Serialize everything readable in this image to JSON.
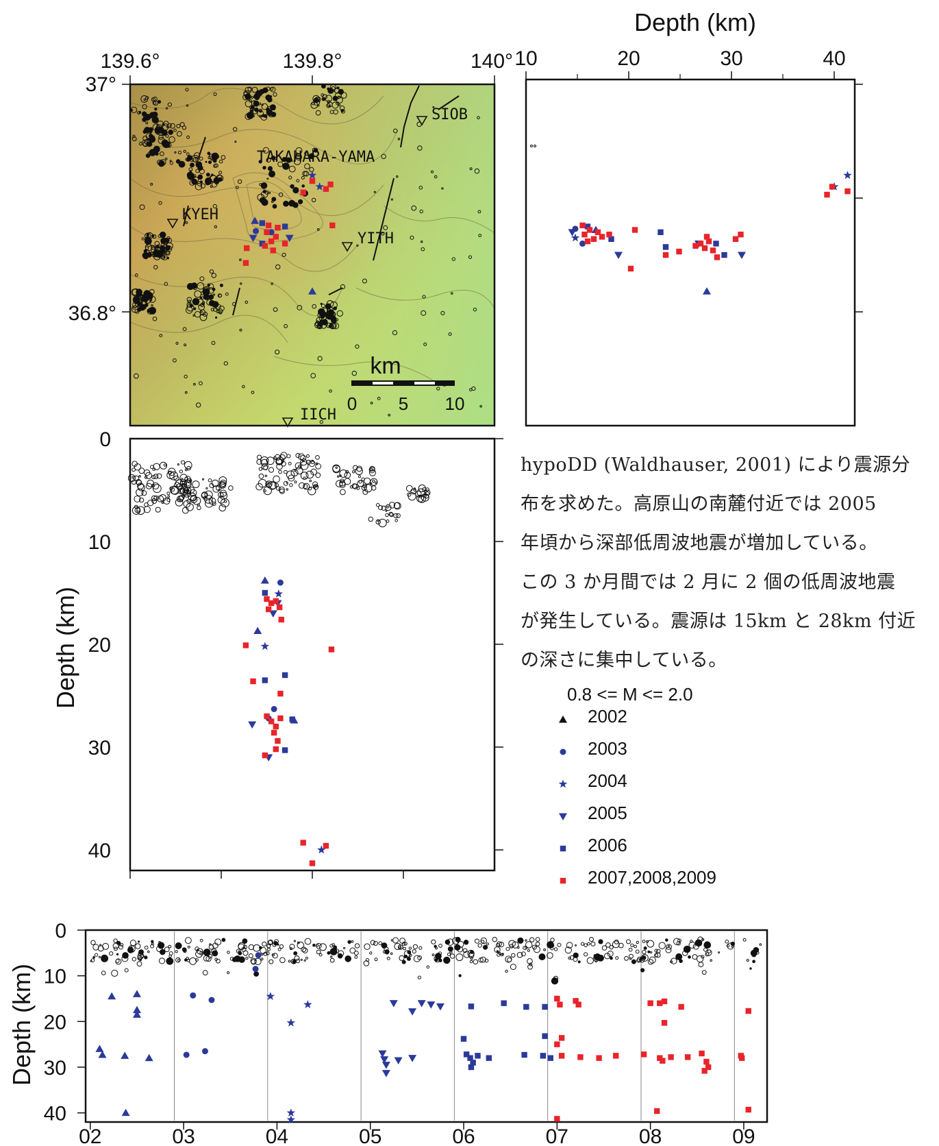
{
  "description_lines": [
    "hypoDD (Waldhauser, 2001) により震源分",
    "布を求めた。高原山の南麓付近では 2005",
    "年頃から深部低周波地震が増加している。",
    "この 3 か月間では 2 月に 2 個の低周波地震",
    "が発生している。震源は 15km と 28km 付近",
    "の深さに集中している。"
  ],
  "legend": {
    "title": "0.8 <= M <= 2.0",
    "entries": [
      {
        "label": "2002",
        "symbol": "triangle",
        "color": "#111111"
      },
      {
        "label": "2003",
        "symbol": "circle",
        "color": "#2b3a9a"
      },
      {
        "label": "2004",
        "symbol": "star",
        "color": "#2b3a9a"
      },
      {
        "label": "2005",
        "symbol": "inverted-triangle",
        "color": "#2b3a9a"
      },
      {
        "label": "2006",
        "symbol": "square",
        "color": "#2b3a9a"
      },
      {
        "label": "2007,2008,2009",
        "symbol": "square",
        "color": "#e8242b"
      }
    ]
  },
  "map": {
    "lon_ticks": [
      "139.6°",
      "139.8°",
      "140°"
    ],
    "lat_ticks": [
      "37°",
      "36.8°"
    ],
    "stations": [
      "SIOB",
      "KYEH",
      "YITH",
      "IICH"
    ],
    "place_label": "TAKAHARA-YAMA",
    "scale_bar": {
      "unit": "km",
      "ticks": [
        "0",
        "5",
        "10"
      ]
    }
  },
  "colors": {
    "blue": "#2b3a9a",
    "red": "#e8242b",
    "black": "#111111"
  },
  "chart_data": [
    {
      "type": "scatter",
      "name": "map",
      "xlim": [
        139.6,
        140.0
      ],
      "ylim": [
        36.7,
        37.0
      ],
      "xticks": [
        139.6,
        139.8,
        140.0
      ],
      "yticks": [
        37.0,
        36.8
      ],
      "points": [
        {
          "g": "2002",
          "x": 139.737,
          "y": 36.88
        },
        {
          "g": "2002",
          "x": 139.8,
          "y": 36.818
        },
        {
          "g": "2003",
          "x": 139.738,
          "y": 36.871
        },
        {
          "g": "2003",
          "x": 139.755,
          "y": 36.87
        },
        {
          "g": "2004",
          "x": 139.8,
          "y": 36.92
        },
        {
          "g": "2004",
          "x": 139.808,
          "y": 36.91
        },
        {
          "g": "2005",
          "x": 139.735,
          "y": 36.865
        },
        {
          "g": "2005",
          "x": 139.775,
          "y": 36.865
        },
        {
          "g": "2006",
          "x": 139.745,
          "y": 36.878
        },
        {
          "g": "2006",
          "x": 139.77,
          "y": 36.875
        },
        {
          "g": "2006",
          "x": 139.745,
          "y": 36.86
        },
        {
          "g": "2007",
          "x": 139.75,
          "y": 36.87
        },
        {
          "g": "2007",
          "x": 139.755,
          "y": 36.862
        },
        {
          "g": "2007",
          "x": 139.76,
          "y": 36.866
        },
        {
          "g": "2007",
          "x": 139.748,
          "y": 36.858
        },
        {
          "g": "2007",
          "x": 139.762,
          "y": 36.874
        },
        {
          "g": "2007",
          "x": 139.752,
          "y": 36.876
        },
        {
          "g": "2007",
          "x": 139.757,
          "y": 36.854
        },
        {
          "g": "2007",
          "x": 139.77,
          "y": 36.86
        },
        {
          "g": "2007",
          "x": 139.79,
          "y": 36.905
        },
        {
          "g": "2007",
          "x": 139.8,
          "y": 36.915
        },
        {
          "g": "2007",
          "x": 139.815,
          "y": 36.908
        },
        {
          "g": "2007",
          "x": 139.82,
          "y": 36.912
        },
        {
          "g": "2007",
          "x": 139.822,
          "y": 36.876
        },
        {
          "g": "2007",
          "x": 139.728,
          "y": 36.856
        },
        {
          "g": "2007",
          "x": 139.727,
          "y": 36.843
        }
      ]
    },
    {
      "type": "scatter",
      "name": "latitude-depth",
      "xlabel": "Depth (km)",
      "xlim": [
        10,
        42
      ],
      "xticks": [
        10,
        20,
        30,
        40
      ],
      "ylim": [
        36.7,
        37.0
      ],
      "points": [
        {
          "g": "2002",
          "x": 16.8,
          "y": 36.872
        },
        {
          "g": "2002",
          "x": 27.6,
          "y": 36.818
        },
        {
          "g": "2003",
          "x": 14.8,
          "y": 36.873
        },
        {
          "g": "2003",
          "x": 15.5,
          "y": 36.86
        },
        {
          "g": "2004",
          "x": 41.3,
          "y": 36.92
        },
        {
          "g": "2004",
          "x": 40.0,
          "y": 36.91
        },
        {
          "g": "2004",
          "x": 14.8,
          "y": 36.865
        },
        {
          "g": "2005",
          "x": 19.0,
          "y": 36.85
        },
        {
          "g": "2005",
          "x": 31.0,
          "y": 36.85
        },
        {
          "g": "2005",
          "x": 14.5,
          "y": 36.87
        },
        {
          "g": "2005",
          "x": 26.8,
          "y": 36.86
        },
        {
          "g": "2006",
          "x": 23.1,
          "y": 36.87
        },
        {
          "g": "2006",
          "x": 23.6,
          "y": 36.857
        },
        {
          "g": "2006",
          "x": 29.3,
          "y": 36.85
        },
        {
          "g": "2006",
          "x": 16.0,
          "y": 36.875
        },
        {
          "g": "2006",
          "x": 18.3,
          "y": 36.864
        },
        {
          "g": "2006",
          "x": 28.5,
          "y": 36.86
        },
        {
          "g": "2007",
          "x": 15.7,
          "y": 36.868
        },
        {
          "g": "2007",
          "x": 16.2,
          "y": 36.872
        },
        {
          "g": "2007",
          "x": 16.6,
          "y": 36.864
        },
        {
          "g": "2007",
          "x": 17.0,
          "y": 36.87
        },
        {
          "g": "2007",
          "x": 15.5,
          "y": 36.876
        },
        {
          "g": "2007",
          "x": 16.0,
          "y": 36.862
        },
        {
          "g": "2007",
          "x": 17.4,
          "y": 36.866
        },
        {
          "g": "2007",
          "x": 18.1,
          "y": 36.868
        },
        {
          "g": "2007",
          "x": 20.2,
          "y": 36.838
        },
        {
          "g": "2007",
          "x": 20.6,
          "y": 36.872
        },
        {
          "g": "2007",
          "x": 23.6,
          "y": 36.85
        },
        {
          "g": "2007",
          "x": 24.9,
          "y": 36.853
        },
        {
          "g": "2007",
          "x": 27.0,
          "y": 36.86
        },
        {
          "g": "2007",
          "x": 27.4,
          "y": 36.856
        },
        {
          "g": "2007",
          "x": 27.8,
          "y": 36.862
        },
        {
          "g": "2007",
          "x": 28.2,
          "y": 36.854
        },
        {
          "g": "2007",
          "x": 27.6,
          "y": 36.866
        },
        {
          "g": "2007",
          "x": 28.6,
          "y": 36.848
        },
        {
          "g": "2007",
          "x": 26.5,
          "y": 36.858
        },
        {
          "g": "2007",
          "x": 30.4,
          "y": 36.864
        },
        {
          "g": "2007",
          "x": 30.9,
          "y": 36.868
        },
        {
          "g": "2007",
          "x": 39.3,
          "y": 36.903
        },
        {
          "g": "2007",
          "x": 39.8,
          "y": 36.91
        },
        {
          "g": "2007",
          "x": 41.3,
          "y": 36.906
        }
      ]
    },
    {
      "type": "scatter",
      "name": "longitude-depth",
      "ylabel": "Depth (km)",
      "xlim": [
        139.6,
        140.0
      ],
      "ylim": [
        0,
        42
      ],
      "yticks": [
        0,
        10,
        20,
        30,
        40
      ],
      "points": [
        {
          "g": "2002",
          "x": 139.748,
          "y": 13.8
        },
        {
          "g": "2002",
          "x": 139.78,
          "y": 27.4
        },
        {
          "g": "2002",
          "x": 139.74,
          "y": 18.7
        },
        {
          "g": "2003",
          "x": 139.765,
          "y": 14.0
        },
        {
          "g": "2003",
          "x": 139.758,
          "y": 26.3
        },
        {
          "g": "2003",
          "x": 139.752,
          "y": 27.2
        },
        {
          "g": "2004",
          "x": 139.748,
          "y": 20.2
        },
        {
          "g": "2004",
          "x": 139.81,
          "y": 40.0
        },
        {
          "g": "2004",
          "x": 139.763,
          "y": 15.1
        },
        {
          "g": "2005",
          "x": 139.734,
          "y": 27.8
        },
        {
          "g": "2005",
          "x": 139.752,
          "y": 31.0
        },
        {
          "g": "2005",
          "x": 139.757,
          "y": 17.0
        },
        {
          "g": "2005",
          "x": 139.762,
          "y": 16.0
        },
        {
          "g": "2006",
          "x": 139.748,
          "y": 23.5
        },
        {
          "g": "2006",
          "x": 139.77,
          "y": 23.0
        },
        {
          "g": "2006",
          "x": 139.77,
          "y": 30.3
        },
        {
          "g": "2006",
          "x": 139.778,
          "y": 27.3
        },
        {
          "g": "2006",
          "x": 139.748,
          "y": 15.0
        },
        {
          "g": "2007",
          "x": 139.75,
          "y": 15.6
        },
        {
          "g": "2007",
          "x": 139.755,
          "y": 16.0
        },
        {
          "g": "2007",
          "x": 139.76,
          "y": 15.8
        },
        {
          "g": "2007",
          "x": 139.764,
          "y": 16.4
        },
        {
          "g": "2007",
          "x": 139.766,
          "y": 17.6
        },
        {
          "g": "2007",
          "x": 139.752,
          "y": 16.6
        },
        {
          "g": "2007",
          "x": 139.727,
          "y": 20.1
        },
        {
          "g": "2007",
          "x": 139.821,
          "y": 20.5
        },
        {
          "g": "2007",
          "x": 139.735,
          "y": 23.6
        },
        {
          "g": "2007",
          "x": 139.765,
          "y": 24.8
        },
        {
          "g": "2007",
          "x": 139.75,
          "y": 27.0
        },
        {
          "g": "2007",
          "x": 139.755,
          "y": 27.5
        },
        {
          "g": "2007",
          "x": 139.76,
          "y": 28.0
        },
        {
          "g": "2007",
          "x": 139.765,
          "y": 27.2
        },
        {
          "g": "2007",
          "x": 139.758,
          "y": 28.6
        },
        {
          "g": "2007",
          "x": 139.762,
          "y": 29.4
        },
        {
          "g": "2007",
          "x": 139.76,
          "y": 30.2
        },
        {
          "g": "2007",
          "x": 139.748,
          "y": 30.8
        },
        {
          "g": "2007",
          "x": 139.79,
          "y": 39.3
        },
        {
          "g": "2007",
          "x": 139.815,
          "y": 39.6
        },
        {
          "g": "2007",
          "x": 139.8,
          "y": 41.3
        }
      ]
    },
    {
      "type": "scatter",
      "name": "time-depth",
      "ylabel": "Depth (km)",
      "xlim": [
        2002.0,
        2009.3
      ],
      "ylim": [
        0,
        42
      ],
      "xtick_labels": [
        "02",
        "03",
        "04",
        "05",
        "06",
        "07",
        "08",
        "09"
      ],
      "yticks": [
        0,
        10,
        20,
        30,
        40
      ],
      "points": [
        {
          "g": "2002",
          "x": 2002.28,
          "y": 14.5
        },
        {
          "g": "2002",
          "x": 2002.55,
          "y": 14.0
        },
        {
          "g": "2002",
          "x": 2002.55,
          "y": 17.5
        },
        {
          "g": "2002",
          "x": 2002.55,
          "y": 18.5
        },
        {
          "g": "2002",
          "x": 2002.15,
          "y": 26.0
        },
        {
          "g": "2002",
          "x": 2002.18,
          "y": 27.3
        },
        {
          "g": "2002",
          "x": 2002.42,
          "y": 27.5
        },
        {
          "g": "2002",
          "x": 2002.68,
          "y": 28.0
        },
        {
          "g": "2002",
          "x": 2002.43,
          "y": 40.0
        },
        {
          "g": "2003",
          "x": 2003.15,
          "y": 14.3
        },
        {
          "g": "2003",
          "x": 2003.35,
          "y": 15.3
        },
        {
          "g": "2003",
          "x": 2003.08,
          "y": 27.3
        },
        {
          "g": "2003",
          "x": 2003.28,
          "y": 26.5
        },
        {
          "g": "2003",
          "x": 2003.85,
          "y": 5.5
        },
        {
          "g": "2003",
          "x": 2003.82,
          "y": 8.5
        },
        {
          "g": "2004",
          "x": 2003.98,
          "y": 14.5
        },
        {
          "g": "2004",
          "x": 2004.2,
          "y": 20.3
        },
        {
          "g": "2004",
          "x": 2004.38,
          "y": 16.3
        },
        {
          "g": "2004",
          "x": 2004.2,
          "y": 40.0
        },
        {
          "g": "2004",
          "x": 2004.2,
          "y": 41.5
        },
        {
          "g": "2005",
          "x": 2005.18,
          "y": 27.0
        },
        {
          "g": "2005",
          "x": 2005.2,
          "y": 28.3
        },
        {
          "g": "2005",
          "x": 2005.22,
          "y": 29.5
        },
        {
          "g": "2005",
          "x": 2005.22,
          "y": 31.3
        },
        {
          "g": "2005",
          "x": 2005.35,
          "y": 28.5
        },
        {
          "g": "2005",
          "x": 2005.5,
          "y": 28.0
        },
        {
          "g": "2005",
          "x": 2005.3,
          "y": 16.0
        },
        {
          "g": "2005",
          "x": 2005.5,
          "y": 17.8
        },
        {
          "g": "2005",
          "x": 2005.6,
          "y": 16.0
        },
        {
          "g": "2005",
          "x": 2005.7,
          "y": 16.3
        },
        {
          "g": "2005",
          "x": 2005.8,
          "y": 16.7
        },
        {
          "g": "2006",
          "x": 2006.05,
          "y": 23.8
        },
        {
          "g": "2006",
          "x": 2006.08,
          "y": 27.2
        },
        {
          "g": "2006",
          "x": 2006.12,
          "y": 28.0
        },
        {
          "g": "2006",
          "x": 2006.15,
          "y": 29.0
        },
        {
          "g": "2006",
          "x": 2006.2,
          "y": 27.5
        },
        {
          "g": "2006",
          "x": 2006.32,
          "y": 28.0
        },
        {
          "g": "2006",
          "x": 2006.13,
          "y": 30.0
        },
        {
          "g": "2006",
          "x": 2006.13,
          "y": 16.7
        },
        {
          "g": "2006",
          "x": 2006.48,
          "y": 16.0
        },
        {
          "g": "2006",
          "x": 2006.72,
          "y": 16.8
        },
        {
          "g": "2006",
          "x": 2006.92,
          "y": 16.8
        },
        {
          "g": "2006",
          "x": 2006.7,
          "y": 27.3
        },
        {
          "g": "2006",
          "x": 2006.92,
          "y": 23.2
        },
        {
          "g": "2006",
          "x": 2006.9,
          "y": 27.5
        },
        {
          "g": "2006",
          "x": 2006.98,
          "y": 28.0
        },
        {
          "g": "2007",
          "x": 2007.05,
          "y": 15.0
        },
        {
          "g": "2007",
          "x": 2007.08,
          "y": 16.3
        },
        {
          "g": "2007",
          "x": 2007.25,
          "y": 15.5
        },
        {
          "g": "2007",
          "x": 2007.28,
          "y": 16.3
        },
        {
          "g": "2007",
          "x": 2007.1,
          "y": 23.6
        },
        {
          "g": "2007",
          "x": 2007.05,
          "y": 25.0
        },
        {
          "g": "2007",
          "x": 2007.1,
          "y": 27.5
        },
        {
          "g": "2007",
          "x": 2007.3,
          "y": 27.8
        },
        {
          "g": "2007",
          "x": 2007.5,
          "y": 28.0
        },
        {
          "g": "2007",
          "x": 2007.68,
          "y": 27.5
        },
        {
          "g": "2007",
          "x": 2007.05,
          "y": 41.3
        },
        {
          "g": "2008",
          "x": 2008.05,
          "y": 16.0
        },
        {
          "g": "2008",
          "x": 2008.15,
          "y": 16.0
        },
        {
          "g": "2008",
          "x": 2008.2,
          "y": 15.6
        },
        {
          "g": "2008",
          "x": 2008.38,
          "y": 16.8
        },
        {
          "g": "2008",
          "x": 2008.2,
          "y": 20.3
        },
        {
          "g": "2008",
          "x": 2007.98,
          "y": 27.2
        },
        {
          "g": "2008",
          "x": 2008.15,
          "y": 28.0
        },
        {
          "g": "2008",
          "x": 2008.18,
          "y": 28.6
        },
        {
          "g": "2008",
          "x": 2008.27,
          "y": 27.8
        },
        {
          "g": "2008",
          "x": 2008.45,
          "y": 27.8
        },
        {
          "g": "2008",
          "x": 2008.6,
          "y": 27.0
        },
        {
          "g": "2008",
          "x": 2008.65,
          "y": 28.8
        },
        {
          "g": "2008",
          "x": 2008.67,
          "y": 30.0
        },
        {
          "g": "2008",
          "x": 2008.63,
          "y": 30.8
        },
        {
          "g": "2008",
          "x": 2008.12,
          "y": 39.6
        },
        {
          "g": "2009",
          "x": 2009.02,
          "y": 27.5
        },
        {
          "g": "2009",
          "x": 2009.03,
          "y": 28.0
        },
        {
          "g": "2009",
          "x": 2009.1,
          "y": 17.7
        },
        {
          "g": "2009",
          "x": 2009.1,
          "y": 39.3
        }
      ]
    }
  ]
}
